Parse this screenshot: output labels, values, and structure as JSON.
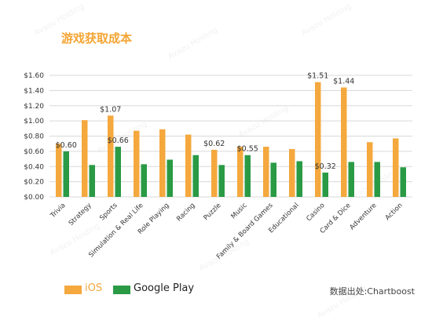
{
  "title": "游戏获取成本",
  "source": "数据出处:Chartboost",
  "watermark": "Avazu Holding",
  "chart_data": {
    "type": "bar",
    "categories": [
      "Trivia",
      "Strategy",
      "Sports",
      "Simulation & Real Life",
      "Role Playing",
      "Racing",
      "Puzzle",
      "Music",
      "Family & Board Games",
      "Educational",
      "Casino",
      "Card & Dice",
      "Adventure",
      "Action"
    ],
    "series": [
      {
        "name": "iOS",
        "color": "#F4A83D",
        "values": [
          0.7,
          1.01,
          1.07,
          0.87,
          0.89,
          0.82,
          0.62,
          0.66,
          0.66,
          0.63,
          1.51,
          1.44,
          0.72,
          0.77
        ]
      },
      {
        "name": "Google Play",
        "color": "#2A9A45",
        "values": [
          0.6,
          0.42,
          0.66,
          0.43,
          0.49,
          0.55,
          0.42,
          0.55,
          0.45,
          0.47,
          0.32,
          0.46,
          0.46,
          0.39
        ]
      }
    ],
    "ylim": [
      0,
      1.6
    ],
    "yticks": [
      "$1.60",
      "$1.40",
      "$1.20",
      "$1.00",
      "$0.80",
      "$0.60",
      "$0.40",
      "$0.20",
      "$0.00"
    ],
    "data_labels": [
      {
        "series": 1,
        "index": 0,
        "text": "$0.60"
      },
      {
        "series": 0,
        "index": 2,
        "text": "$1.07"
      },
      {
        "series": 1,
        "index": 2,
        "text": "$0.66"
      },
      {
        "series": 0,
        "index": 6,
        "text": "$0.62"
      },
      {
        "series": 1,
        "index": 7,
        "text": "$0.55"
      },
      {
        "series": 0,
        "index": 10,
        "text": "$1.51"
      },
      {
        "series": 1,
        "index": 10,
        "text": "$0.32"
      },
      {
        "series": 0,
        "index": 11,
        "text": "$1.44"
      }
    ],
    "grid": true,
    "legend": "bottom-left"
  }
}
